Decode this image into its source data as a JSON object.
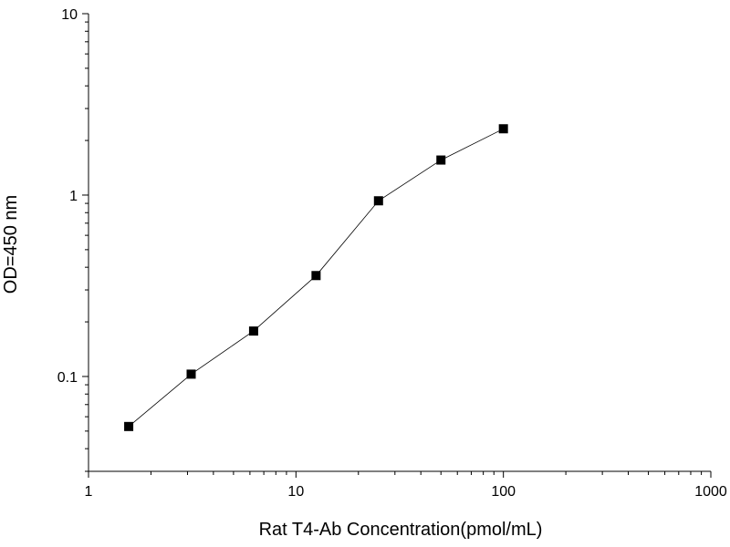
{
  "chart_data": {
    "type": "scatter",
    "x_scale": "log",
    "y_scale": "log",
    "xlim": [
      1,
      1000
    ],
    "ylim": [
      0.03,
      10
    ],
    "xlabel": "Rat T4-Ab Concentration(pmol/mL)",
    "ylabel": "OD=450 nm",
    "x_ticks": [
      {
        "value": 1,
        "label": "1"
      },
      {
        "value": 10,
        "label": "10"
      },
      {
        "value": 100,
        "label": "100"
      },
      {
        "value": 1000,
        "label": "1000"
      }
    ],
    "y_ticks": [
      {
        "value": 0.1,
        "label": "0.1"
      },
      {
        "value": 1,
        "label": "1"
      },
      {
        "value": 10,
        "label": "10"
      }
    ],
    "grid": false,
    "legend": "none",
    "series": [
      {
        "x": [
          1.5625,
          3.125,
          6.25,
          12.5,
          25,
          50,
          100
        ],
        "y": [
          0.053,
          0.103,
          0.178,
          0.36,
          0.93,
          1.56,
          2.32
        ],
        "color": "#000000",
        "marker": "square",
        "connected": true
      }
    ]
  }
}
